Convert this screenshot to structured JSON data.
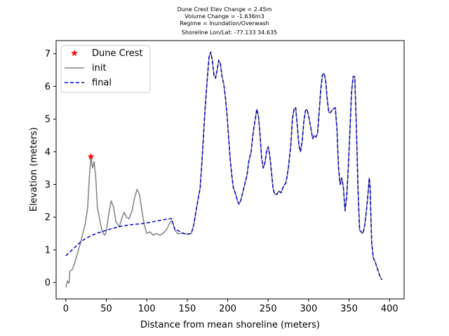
{
  "chart_data": {
    "type": "line",
    "title_lines": [
      "Dune Crest Elev Change = 2.45m",
      "Volume Change = -1.636m3",
      "Regime = Inundation/Overwash",
      "Shoreline Lon/Lat: -77.133 34.635"
    ],
    "xlabel": "Distance from mean shoreline (meters)",
    "ylabel": "Elevation (meters)",
    "xlim": [
      -12,
      418
    ],
    "ylim": [
      -0.5,
      7.4
    ],
    "xticks": [
      0,
      50,
      100,
      150,
      200,
      250,
      300,
      350,
      400
    ],
    "yticks": [
      0,
      1,
      2,
      3,
      4,
      5,
      6,
      7
    ],
    "grid": false,
    "legend_position": "top-left",
    "legend": [
      {
        "label": "Dune Crest",
        "marker": "star",
        "color": "#ff0000"
      },
      {
        "label": "init",
        "line": "solid",
        "color": "#808080"
      },
      {
        "label": "final",
        "line": "dashed",
        "color": "#0000cc"
      }
    ],
    "series": [
      {
        "name": "init",
        "color": "#808080",
        "dash": "solid",
        "points": [
          [
            0,
            -0.15
          ],
          [
            2,
            0.05
          ],
          [
            4,
            -0.02
          ],
          [
            5,
            0.35
          ],
          [
            8,
            0.4
          ],
          [
            11,
            0.6
          ],
          [
            15,
            0.95
          ],
          [
            18,
            1.2
          ],
          [
            21,
            1.5
          ],
          [
            24,
            1.8
          ],
          [
            27,
            2.3
          ],
          [
            29,
            3.2
          ],
          [
            31,
            3.85
          ],
          [
            33,
            3.5
          ],
          [
            35,
            3.7
          ],
          [
            37,
            3.2
          ],
          [
            39,
            2.3
          ],
          [
            42,
            1.9
          ],
          [
            45,
            1.55
          ],
          [
            48,
            1.45
          ],
          [
            50,
            1.55
          ],
          [
            53,
            2.1
          ],
          [
            56,
            2.5
          ],
          [
            59,
            2.3
          ],
          [
            62,
            1.85
          ],
          [
            66,
            1.7
          ],
          [
            69,
            1.95
          ],
          [
            72,
            2.15
          ],
          [
            75,
            2.0
          ],
          [
            78,
            1.95
          ],
          [
            82,
            2.2
          ],
          [
            85,
            2.6
          ],
          [
            88,
            2.85
          ],
          [
            91,
            2.7
          ],
          [
            94,
            2.2
          ],
          [
            97,
            1.75
          ],
          [
            100,
            1.5
          ],
          [
            104,
            1.55
          ],
          [
            108,
            1.45
          ],
          [
            112,
            1.5
          ],
          [
            116,
            1.45
          ],
          [
            120,
            1.5
          ],
          [
            124,
            1.6
          ],
          [
            128,
            1.8
          ],
          [
            131,
            1.9
          ],
          [
            133,
            1.75
          ],
          [
            135,
            1.6
          ],
          [
            138,
            1.5
          ],
          [
            142,
            1.5
          ],
          [
            146,
            1.5
          ],
          [
            150,
            1.48
          ],
          [
            155,
            1.5
          ],
          [
            158,
            1.75
          ],
          [
            162,
            2.35
          ],
          [
            166,
            2.9
          ],
          [
            169,
            4.0
          ],
          [
            172,
            5.3
          ],
          [
            175,
            6.3
          ],
          [
            177,
            6.9
          ],
          [
            179,
            7.05
          ],
          [
            181,
            6.8
          ],
          [
            183,
            6.35
          ],
          [
            185,
            6.25
          ],
          [
            187,
            6.5
          ],
          [
            189,
            6.8
          ],
          [
            191,
            6.7
          ],
          [
            193,
            6.3
          ],
          [
            195,
            6.1
          ],
          [
            197,
            5.7
          ],
          [
            199,
            5.2
          ],
          [
            201,
            4.5
          ],
          [
            203,
            3.8
          ],
          [
            205,
            3.3
          ],
          [
            207,
            2.9
          ],
          [
            210,
            2.7
          ],
          [
            212,
            2.5
          ],
          [
            214,
            2.4
          ],
          [
            216,
            2.5
          ],
          [
            218,
            2.7
          ],
          [
            221,
            3.0
          ],
          [
            224,
            3.3
          ],
          [
            226,
            3.7
          ],
          [
            229,
            4.0
          ],
          [
            231,
            4.5
          ],
          [
            234,
            5.0
          ],
          [
            236,
            5.3
          ],
          [
            238,
            5.1
          ],
          [
            240,
            4.5
          ],
          [
            242,
            3.8
          ],
          [
            244,
            3.5
          ],
          [
            246,
            3.65
          ],
          [
            248,
            4.0
          ],
          [
            250,
            4.15
          ],
          [
            252,
            3.9
          ],
          [
            254,
            3.4
          ],
          [
            256,
            2.9
          ],
          [
            258,
            2.7
          ],
          [
            261,
            2.7
          ],
          [
            263,
            2.8
          ],
          [
            266,
            2.75
          ],
          [
            269,
            2.95
          ],
          [
            272,
            3.05
          ],
          [
            275,
            3.5
          ],
          [
            278,
            4.2
          ],
          [
            280,
            5.0
          ],
          [
            282,
            5.3
          ],
          [
            284,
            5.35
          ],
          [
            286,
            4.8
          ],
          [
            288,
            4.2
          ],
          [
            290,
            4.0
          ],
          [
            292,
            4.3
          ],
          [
            294,
            4.9
          ],
          [
            296,
            5.25
          ],
          [
            298,
            5.3
          ],
          [
            300,
            5.1
          ],
          [
            303,
            4.7
          ],
          [
            305,
            4.4
          ],
          [
            307,
            4.5
          ],
          [
            309,
            4.45
          ],
          [
            311,
            4.55
          ],
          [
            313,
            5.2
          ],
          [
            315,
            5.9
          ],
          [
            317,
            6.35
          ],
          [
            319,
            6.4
          ],
          [
            321,
            6.2
          ],
          [
            323,
            5.6
          ],
          [
            325,
            5.2
          ],
          [
            327,
            5.2
          ],
          [
            330,
            5.3
          ],
          [
            333,
            5.35
          ],
          [
            335,
            4.7
          ],
          [
            337,
            3.5
          ],
          [
            339,
            3.0
          ],
          [
            341,
            3.2
          ],
          [
            343,
            2.9
          ],
          [
            345,
            2.2
          ],
          [
            347,
            2.6
          ],
          [
            349,
            3.5
          ],
          [
            351,
            4.6
          ],
          [
            353,
            5.8
          ],
          [
            355,
            6.3
          ],
          [
            357,
            6.3
          ],
          [
            359,
            4.8
          ],
          [
            361,
            2.9
          ],
          [
            363,
            1.6
          ],
          [
            365,
            1.55
          ],
          [
            367,
            1.5
          ],
          [
            369,
            1.7
          ],
          [
            371,
            2.1
          ],
          [
            373,
            2.6
          ],
          [
            375,
            3.2
          ],
          [
            376,
            2.9
          ],
          [
            377,
            2.0
          ],
          [
            378,
            1.2
          ],
          [
            380,
            0.75
          ],
          [
            382,
            0.65
          ],
          [
            384,
            0.5
          ],
          [
            386,
            0.35
          ],
          [
            388,
            0.2
          ],
          [
            390,
            0.1
          ],
          [
            391,
            0.1
          ]
        ]
      },
      {
        "name": "final",
        "color": "#0000cc",
        "dash": "dashed",
        "points": [
          [
            0,
            0.82
          ],
          [
            10,
            1.05
          ],
          [
            20,
            1.28
          ],
          [
            30,
            1.42
          ],
          [
            40,
            1.52
          ],
          [
            50,
            1.6
          ],
          [
            60,
            1.67
          ],
          [
            70,
            1.73
          ],
          [
            80,
            1.77
          ],
          [
            90,
            1.79
          ],
          [
            100,
            1.82
          ],
          [
            110,
            1.87
          ],
          [
            120,
            1.92
          ],
          [
            128,
            1.95
          ],
          [
            131,
            1.95
          ],
          [
            133,
            1.75
          ],
          [
            135,
            1.6
          ],
          [
            138,
            1.6
          ],
          [
            142,
            1.55
          ],
          [
            146,
            1.5
          ],
          [
            150,
            1.48
          ],
          [
            155,
            1.5
          ],
          [
            158,
            1.75
          ],
          [
            162,
            2.35
          ],
          [
            166,
            2.9
          ],
          [
            169,
            4.0
          ],
          [
            172,
            5.3
          ],
          [
            175,
            6.3
          ],
          [
            177,
            6.9
          ],
          [
            179,
            7.05
          ],
          [
            181,
            6.8
          ],
          [
            183,
            6.35
          ],
          [
            185,
            6.25
          ],
          [
            187,
            6.5
          ],
          [
            189,
            6.8
          ],
          [
            191,
            6.7
          ],
          [
            193,
            6.3
          ],
          [
            195,
            6.1
          ],
          [
            197,
            5.7
          ],
          [
            199,
            5.2
          ],
          [
            201,
            4.5
          ],
          [
            203,
            3.8
          ],
          [
            205,
            3.3
          ],
          [
            207,
            2.9
          ],
          [
            210,
            2.7
          ],
          [
            212,
            2.5
          ],
          [
            214,
            2.4
          ],
          [
            216,
            2.5
          ],
          [
            218,
            2.7
          ],
          [
            221,
            3.0
          ],
          [
            224,
            3.3
          ],
          [
            226,
            3.7
          ],
          [
            229,
            4.0
          ],
          [
            231,
            4.5
          ],
          [
            234,
            5.0
          ],
          [
            236,
            5.3
          ],
          [
            238,
            5.1
          ],
          [
            240,
            4.5
          ],
          [
            242,
            3.8
          ],
          [
            244,
            3.5
          ],
          [
            246,
            3.65
          ],
          [
            248,
            4.0
          ],
          [
            250,
            4.15
          ],
          [
            252,
            3.9
          ],
          [
            254,
            3.4
          ],
          [
            256,
            2.9
          ],
          [
            258,
            2.7
          ],
          [
            261,
            2.7
          ],
          [
            263,
            2.8
          ],
          [
            266,
            2.75
          ],
          [
            269,
            2.95
          ],
          [
            272,
            3.05
          ],
          [
            275,
            3.5
          ],
          [
            278,
            4.2
          ],
          [
            280,
            5.0
          ],
          [
            282,
            5.3
          ],
          [
            284,
            5.35
          ],
          [
            286,
            4.8
          ],
          [
            288,
            4.2
          ],
          [
            290,
            4.0
          ],
          [
            292,
            4.3
          ],
          [
            294,
            4.9
          ],
          [
            296,
            5.25
          ],
          [
            298,
            5.3
          ],
          [
            300,
            5.1
          ],
          [
            303,
            4.7
          ],
          [
            305,
            4.4
          ],
          [
            307,
            4.5
          ],
          [
            309,
            4.45
          ],
          [
            311,
            4.55
          ],
          [
            313,
            5.2
          ],
          [
            315,
            5.9
          ],
          [
            317,
            6.35
          ],
          [
            319,
            6.4
          ],
          [
            321,
            6.2
          ],
          [
            323,
            5.6
          ],
          [
            325,
            5.2
          ],
          [
            327,
            5.2
          ],
          [
            330,
            5.3
          ],
          [
            333,
            5.35
          ],
          [
            335,
            4.7
          ],
          [
            337,
            3.5
          ],
          [
            339,
            3.0
          ],
          [
            341,
            3.2
          ],
          [
            343,
            2.9
          ],
          [
            345,
            2.2
          ],
          [
            347,
            2.6
          ],
          [
            349,
            3.5
          ],
          [
            351,
            4.6
          ],
          [
            353,
            5.8
          ],
          [
            355,
            6.3
          ],
          [
            357,
            6.3
          ],
          [
            359,
            4.8
          ],
          [
            361,
            2.9
          ],
          [
            363,
            1.6
          ],
          [
            365,
            1.55
          ],
          [
            367,
            1.5
          ],
          [
            369,
            1.7
          ],
          [
            371,
            2.1
          ],
          [
            373,
            2.6
          ],
          [
            375,
            3.2
          ],
          [
            376,
            2.9
          ],
          [
            377,
            2.0
          ],
          [
            378,
            1.2
          ],
          [
            380,
            0.75
          ],
          [
            382,
            0.65
          ],
          [
            384,
            0.5
          ],
          [
            386,
            0.35
          ],
          [
            388,
            0.2
          ],
          [
            390,
            0.1
          ],
          [
            391,
            0.1
          ]
        ]
      }
    ],
    "markers": [
      {
        "name": "Dune Crest",
        "x": 31,
        "y": 3.85,
        "color": "#ff0000",
        "shape": "star"
      }
    ]
  }
}
